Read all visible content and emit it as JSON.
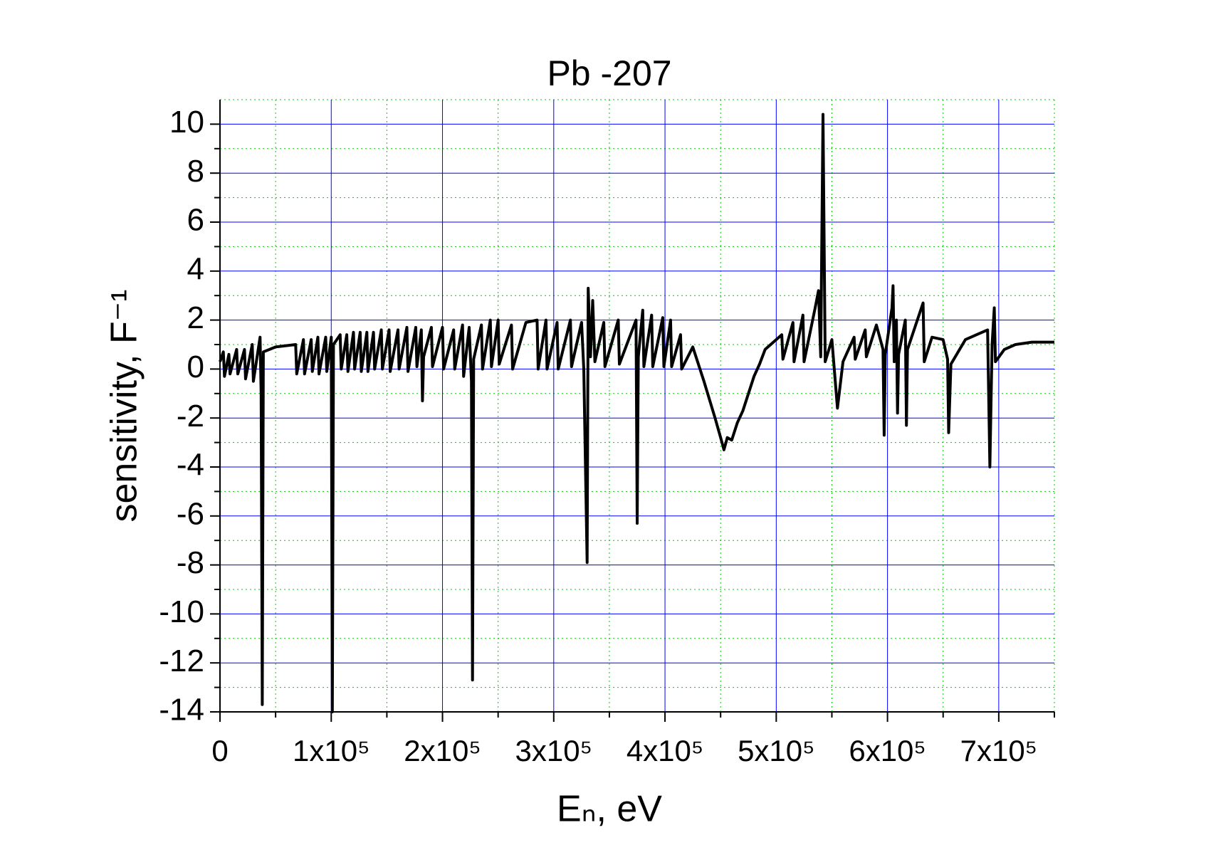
{
  "chart_data": {
    "type": "line",
    "title": "Pb -207",
    "x_label": "Eₙ, eV",
    "y_label": "sensitivity, F⁻¹",
    "xlim": [
      0,
      750000
    ],
    "ylim": [
      -14,
      11
    ],
    "xticks": [
      0,
      {
        "value": 100000,
        "label": "1x10⁵"
      },
      {
        "value": 200000,
        "label": "2x10⁵"
      },
      {
        "value": 300000,
        "label": "3x10⁵"
      },
      {
        "value": 400000,
        "label": "4x10⁵"
      },
      {
        "value": 500000,
        "label": "5x10⁵"
      },
      {
        "value": 600000,
        "label": "6x10⁵"
      },
      {
        "value": 700000,
        "label": "7x10⁵"
      }
    ],
    "yticks": [
      -14,
      -12,
      -10,
      -8,
      -6,
      -4,
      -2,
      0,
      2,
      4,
      6,
      8,
      10
    ],
    "grid": true,
    "grid_color": "#0000ff",
    "minor_grid": true,
    "minor_grid_color": "#00cc00",
    "x": [
      0,
      3000,
      4000,
      8000,
      9000,
      15000,
      16000,
      22000,
      23000,
      29000,
      30000,
      36000,
      37000,
      38000,
      39000,
      50000,
      68000,
      69000,
      75000,
      76000,
      82000,
      83000,
      88000,
      89000,
      95000,
      96000,
      100000,
      101000,
      102000,
      108000,
      109000,
      114000,
      115000,
      120000,
      121000,
      126000,
      127000,
      132000,
      133000,
      138000,
      139000,
      145000,
      146000,
      152000,
      153000,
      160000,
      161000,
      168000,
      169000,
      176000,
      177000,
      181000,
      182000,
      183000,
      190000,
      191000,
      200000,
      201000,
      210000,
      211000,
      218000,
      219000,
      224000,
      226000,
      227000,
      228000,
      235000,
      236000,
      243000,
      244000,
      250000,
      251000,
      262000,
      263000,
      275000,
      285000,
      286000,
      293000,
      294000,
      303000,
      304000,
      315000,
      316000,
      325000,
      327000,
      330000,
      331000,
      333000,
      335000,
      337000,
      345000,
      346000,
      358000,
      359000,
      374000,
      375000,
      376000,
      380000,
      381000,
      388000,
      389000,
      398000,
      399000,
      405000,
      406000,
      414000,
      415000,
      425000,
      435000,
      445000,
      450000,
      453000,
      456000,
      460000,
      465000,
      470000,
      475000,
      480000,
      485000,
      490000,
      500000,
      505000,
      506000,
      515000,
      516000,
      524000,
      525000,
      535000,
      538000,
      540000,
      542000,
      544000,
      550000,
      555000,
      560000,
      570000,
      571000,
      580000,
      581000,
      590000,
      596000,
      597000,
      598000,
      604000,
      605000,
      606000,
      608000,
      609000,
      610000,
      616000,
      617000,
      618000,
      632000,
      633000,
      640000,
      650000,
      654000,
      655000,
      657000,
      670000,
      685000,
      690000,
      692000,
      694000,
      696000,
      697000,
      705000,
      715000,
      730000,
      750000
    ],
    "series": [
      {
        "color": "#000000",
        "values": [
          0.3,
          0.7,
          -0.3,
          0.6,
          -0.2,
          0.8,
          -0.2,
          0.8,
          -0.4,
          1.0,
          -0.5,
          1.3,
          -1.0,
          -13.7,
          0.7,
          0.9,
          1.0,
          -0.2,
          1.2,
          -0.2,
          1.2,
          -0.1,
          1.3,
          -0.2,
          1.3,
          -0.1,
          1.3,
          -14,
          1.0,
          1.4,
          0.0,
          1.4,
          -0.1,
          1.5,
          0.0,
          1.5,
          -0.1,
          1.5,
          -0.1,
          1.5,
          0.0,
          1.6,
          0.0,
          1.6,
          -0.1,
          1.6,
          0.0,
          1.7,
          -0.1,
          1.7,
          0.1,
          1.6,
          -1.3,
          0.5,
          1.7,
          0.1,
          1.7,
          0.0,
          1.6,
          0.0,
          1.8,
          -0.3,
          1.7,
          -0.5,
          -12.7,
          0.4,
          1.8,
          0.0,
          2.0,
          0.1,
          2.0,
          0.2,
          1.8,
          0.0,
          1.9,
          2.0,
          0.0,
          2.0,
          0.0,
          1.9,
          0.0,
          2.0,
          0.1,
          1.9,
          0.0,
          -7.9,
          3.3,
          0.5,
          2.8,
          0.3,
          1.9,
          0.1,
          2.0,
          0.2,
          2.0,
          -6.3,
          0.5,
          2.4,
          0.1,
          2.2,
          0.1,
          2.1,
          0.1,
          2.0,
          0.1,
          1.4,
          0.0,
          0.9,
          -0.5,
          -2.0,
          -2.8,
          -3.3,
          -2.8,
          -2.9,
          -2.2,
          -1.7,
          -1.0,
          -0.3,
          0.2,
          0.8,
          1.2,
          1.4,
          0.4,
          1.9,
          0.3,
          2.2,
          0.3,
          2.5,
          3.2,
          0.5,
          10.4,
          0.3,
          1.2,
          -1.6,
          0.3,
          1.3,
          0.4,
          1.6,
          0.5,
          1.8,
          0.8,
          -2.7,
          0.6,
          2.5,
          3.4,
          0.3,
          2.0,
          -1.8,
          0.6,
          2.0,
          -2.3,
          0.8,
          2.7,
          0.3,
          1.3,
          1.2,
          0.4,
          -2.6,
          0.2,
          1.2,
          1.5,
          1.6,
          -4.0,
          1.0,
          2.5,
          0.3,
          0.8,
          1.0,
          1.1,
          1.1
        ]
      }
    ]
  }
}
